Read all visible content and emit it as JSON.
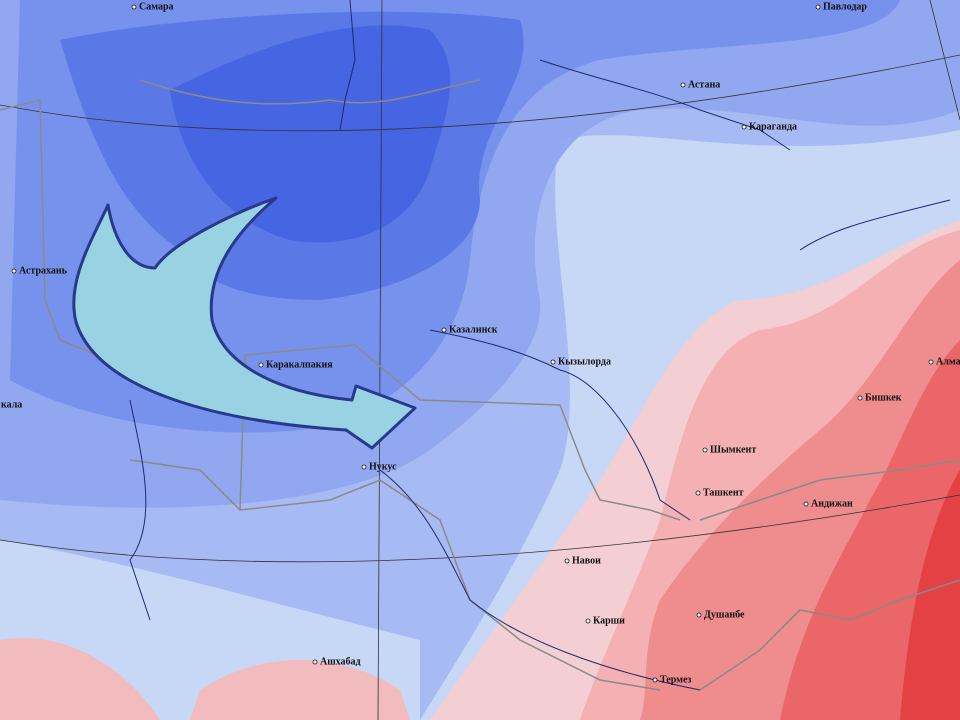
{
  "map": {
    "cities": [
      {
        "label": "Самара"
      },
      {
        "label": "Павлодар"
      },
      {
        "label": "Астана"
      },
      {
        "label": "Караганда"
      },
      {
        "label": "Астрахань"
      },
      {
        "label": "кала"
      },
      {
        "label": "Казалинск"
      },
      {
        "label": "Кызылорда"
      },
      {
        "label": "Каракалпакия"
      },
      {
        "label": "Нукус"
      },
      {
        "label": "Шымкент"
      },
      {
        "label": "Ташкент"
      },
      {
        "label": "Андижан"
      },
      {
        "label": "Бишкек"
      },
      {
        "label": "Алма"
      },
      {
        "label": "Навои"
      },
      {
        "label": "Карши"
      },
      {
        "label": "Душанбе"
      },
      {
        "label": "Ашхабад"
      },
      {
        "label": "Термез"
      }
    ]
  }
}
